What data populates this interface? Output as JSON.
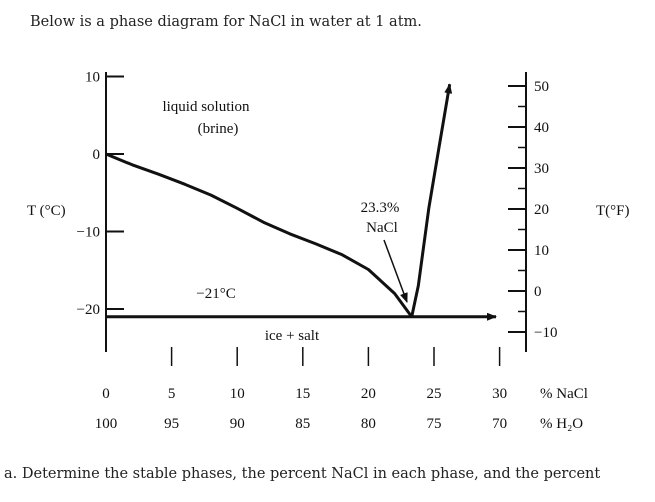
{
  "page": {
    "intro": "Below is a phase diagram for NaCl in water at 1 atm.",
    "question": "a. Determine the stable phases, the percent NaCl in each phase, and the percent"
  },
  "chart_data": {
    "type": "line",
    "xlabel": "% NaCl",
    "xlabel_secondary": "% H₂O",
    "ylabel_left": "T (°C)",
    "ylabel_right": "T(°F)",
    "xlim": [
      0,
      30
    ],
    "ylim_c": [
      -25,
      11
    ],
    "ylim_f": [
      -10,
      50
    ],
    "x_ticks": [
      {
        "nacl": "0",
        "h2o": "100"
      },
      {
        "nacl": "5",
        "h2o": "95"
      },
      {
        "nacl": "10",
        "h2o": "90"
      },
      {
        "nacl": "15",
        "h2o": "85"
      },
      {
        "nacl": "20",
        "h2o": "80"
      },
      {
        "nacl": "25",
        "h2o": "75"
      },
      {
        "nacl": "30",
        "h2o": "70"
      }
    ],
    "y_ticks_c": [
      "10",
      "0",
      "−10",
      "−20"
    ],
    "y_ticks_f": [
      "50",
      "40",
      "30",
      "20",
      "10",
      "0",
      "−10"
    ],
    "series": [
      {
        "role": "liquidus-ice",
        "x": [
          0,
          2,
          4,
          6,
          8,
          10,
          12,
          14,
          16,
          18,
          20,
          22,
          23.3
        ],
        "y": [
          0,
          -1.4,
          -2.6,
          -3.9,
          -5.3,
          -7.0,
          -8.8,
          -10.3,
          -11.6,
          -13.0,
          -14.9,
          -18.0,
          -21
        ]
      },
      {
        "role": "liquidus-salt",
        "x": [
          23.3,
          23.8,
          24.6,
          25.4,
          26.2
        ],
        "y": [
          -21,
          -17,
          -7,
          1,
          9
        ]
      },
      {
        "role": "eutectic-line",
        "x": [
          0,
          30
        ],
        "y": [
          -21,
          -21
        ]
      }
    ],
    "annotations": {
      "region_liquid": [
        "liquid solution",
        "(brine)"
      ],
      "eutectic_comp": [
        "23.3%",
        "NaCl"
      ],
      "eutectic_temp": "−21°C",
      "region_solid": "ice + salt"
    }
  }
}
